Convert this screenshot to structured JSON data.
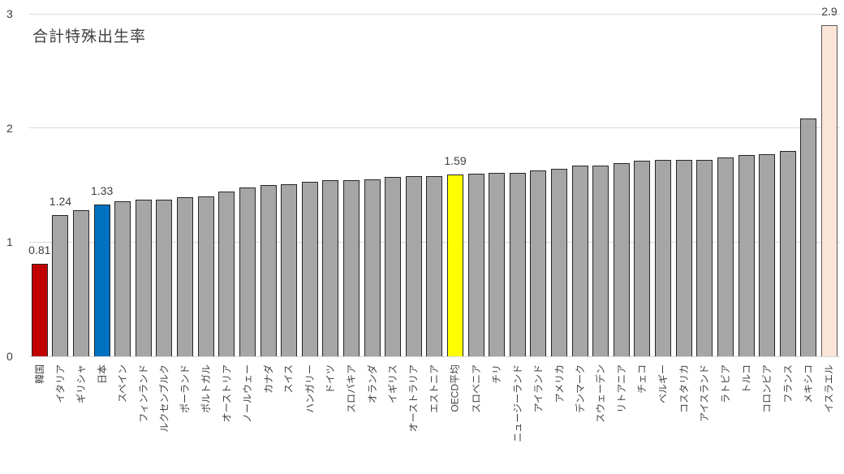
{
  "chart_data": {
    "type": "bar",
    "title": "合計特殊出生率",
    "categories": [
      "韓国",
      "イタリア",
      "ギリシャ",
      "日本",
      "スペイン",
      "フィンランド",
      "ルクセンブルク",
      "ポーランド",
      "ポルトガル",
      "オーストリア",
      "ノールウェー",
      "カナダ",
      "スイス",
      "ハンガリー",
      "ドイツ",
      "スロバキア",
      "オランダ",
      "イギリス",
      "オーストラリア",
      "エストニア",
      "OECD平均",
      "スロベニア",
      "チリ",
      "ニュージーランド",
      "アイランド",
      "アメリカ",
      "デンマーク",
      "スウェーデン",
      "リトアニア",
      "チェコ",
      "ベルギー",
      "コスタリカ",
      "アイスランド",
      "ラトビア",
      "トルコ",
      "コロンビア",
      "フランス",
      "メキシコ",
      "イスラエル"
    ],
    "values": [
      0.81,
      1.24,
      1.28,
      1.33,
      1.36,
      1.37,
      1.37,
      1.39,
      1.4,
      1.44,
      1.48,
      1.5,
      1.51,
      1.53,
      1.54,
      1.54,
      1.55,
      1.57,
      1.58,
      1.58,
      1.59,
      1.6,
      1.61,
      1.61,
      1.63,
      1.64,
      1.67,
      1.67,
      1.69,
      1.71,
      1.72,
      1.72,
      1.72,
      1.74,
      1.76,
      1.77,
      1.8,
      2.08,
      2.9
    ],
    "data_labels": {
      "韓国": "0.81",
      "イタリア": "1.24",
      "日本": "1.33",
      "OECD平均": "1.59",
      "イスラエル": "2.9"
    },
    "highlight_colors": {
      "韓国": "#c00000",
      "日本": "#0070c0",
      "OECD平均": "#ffff00",
      "イスラエル": "#fbe5d6"
    },
    "highlight_borders": {
      "イスラエル": "#595959"
    },
    "default_bar_color": "#a6a6a6",
    "xlabel": "",
    "ylabel": "",
    "ylim": [
      0,
      3
    ],
    "yticks": [
      "0",
      "1",
      "2",
      "3"
    ],
    "grid": true,
    "legend_position": "none"
  },
  "style": {
    "gridline_color": "#d9d9d9",
    "bar_border_color": "#262626",
    "text_color": "#404040",
    "background": "#ffffff"
  }
}
